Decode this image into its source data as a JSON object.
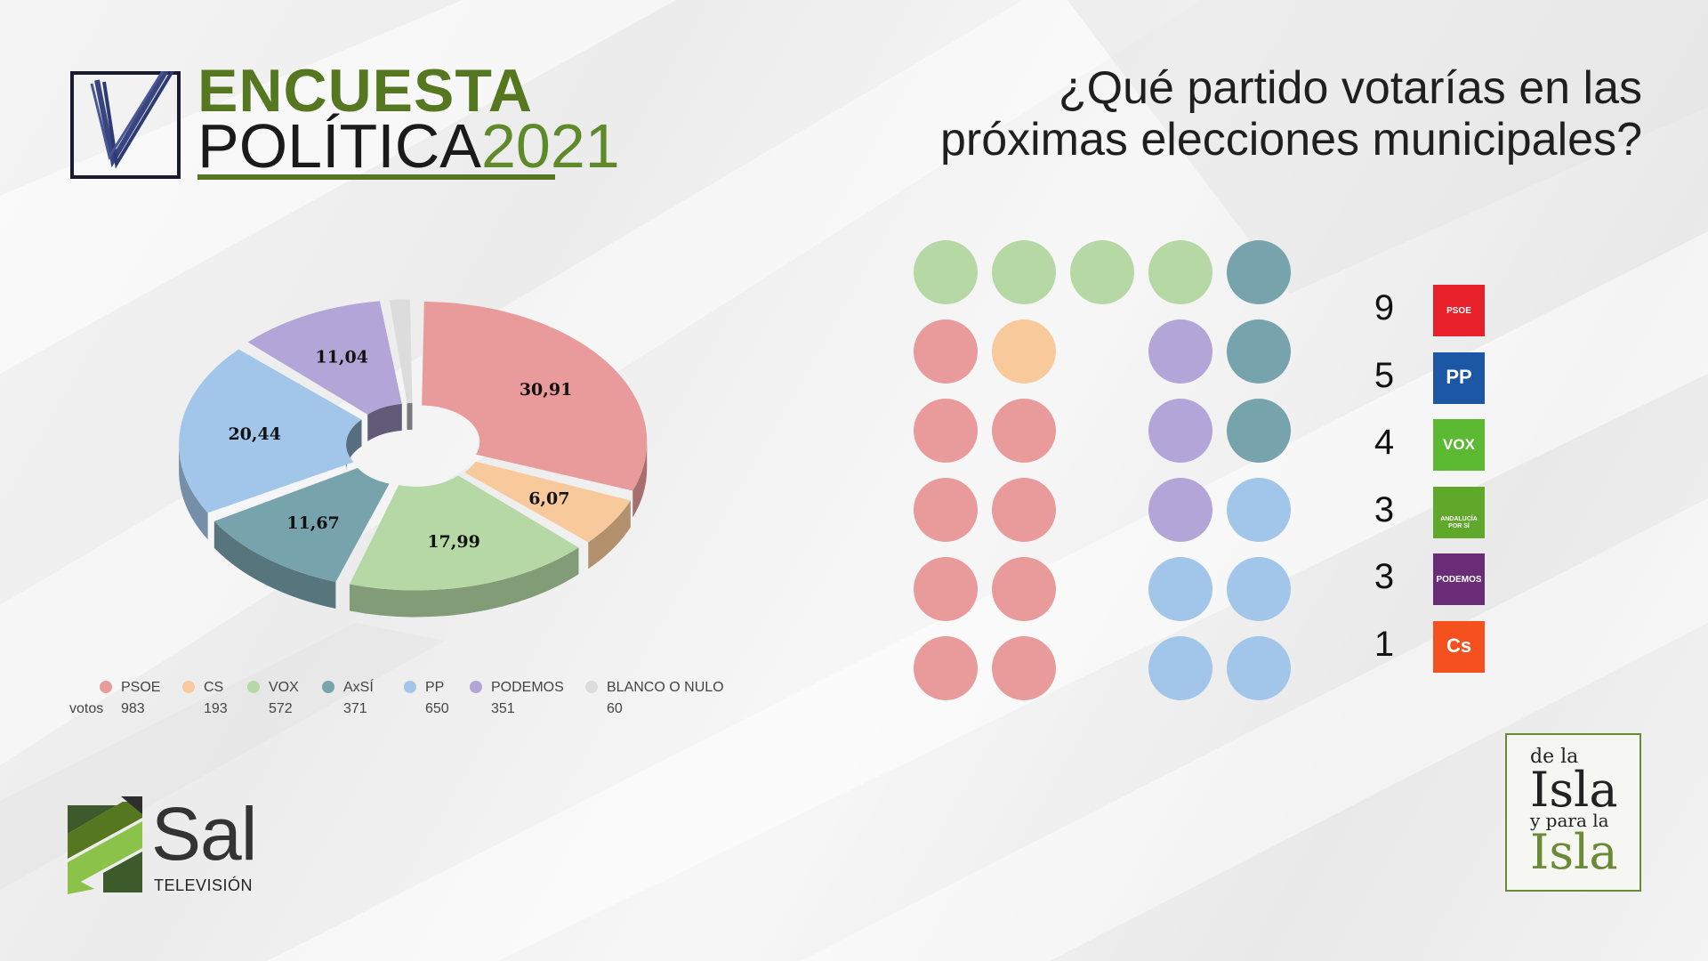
{
  "header": {
    "title_line1": "ENCUESTA",
    "title_line2": "POLÍTICA",
    "title_year": "2021"
  },
  "question": {
    "line1": "¿Qué partido votarías en las",
    "line2": "próximas elecciones municipales?"
  },
  "chart_data": [
    {
      "type": "pie",
      "style": "3d-donut",
      "categories": [
        "PSOE",
        "CS",
        "VOX",
        "AxSÍ",
        "PP",
        "PODEMOS",
        "BLANCO O NULO"
      ],
      "values": [
        30.91,
        6.07,
        17.99,
        11.67,
        20.44,
        11.04,
        1.89
      ],
      "value_labels": [
        "30,91",
        "6,07",
        "17,99",
        "11,67",
        "20,44",
        "11,04",
        ""
      ],
      "votes": [
        "983",
        "193",
        "572",
        "371",
        "650",
        "351",
        "60"
      ],
      "votes_label": "votos",
      "colors": [
        "#e99a9a",
        "#f8c99a",
        "#b5d8a5",
        "#77a3ad",
        "#a2c6ea",
        "#b3a5d8",
        "#dcdcdc"
      ],
      "legend_position": "bottom"
    },
    {
      "type": "table",
      "kind": "seat-distribution",
      "rows": [
        {
          "party": "PSOE",
          "seats": "9",
          "logo_text": "PSOE",
          "color": "#e8202a"
        },
        {
          "party": "PP",
          "seats": "5",
          "logo_text": "PP",
          "color": "#1c57a5"
        },
        {
          "party": "VOX",
          "seats": "4",
          "logo_text": "VOX",
          "color": "#5bb932"
        },
        {
          "party": "AxSÍ",
          "seats": "3",
          "logo_text": "ANDALUCÍA POR SÍ",
          "color": "#5fa829"
        },
        {
          "party": "PODEMOS",
          "seats": "3",
          "logo_text": "PODEMOS",
          "color": "#6a2c76"
        },
        {
          "party": "CS",
          "seats": "1",
          "logo_text": "Cs",
          "color": "#f4511e"
        }
      ]
    }
  ],
  "seat_colors": {
    "VOX": "#b5d8a5",
    "AxSI": "#77a3ad",
    "PSOE": "#e99a9a",
    "CS": "#f8c99a",
    "PODEMOS": "#b3a5d8",
    "PP": "#a2c6ea"
  },
  "seat_grid": [
    [
      "VOX",
      "VOX",
      "VOX",
      "VOX",
      "AxSI"
    ],
    [
      "PSOE",
      "CS",
      "",
      "PODEMOS",
      "AxSI"
    ],
    [
      "PSOE",
      "PSOE",
      "",
      "PODEMOS",
      "AxSI"
    ],
    [
      "PSOE",
      "PSOE",
      "",
      "PODEMOS",
      "PP"
    ],
    [
      "PSOE",
      "PSOE",
      "",
      "PP",
      "PP"
    ],
    [
      "PSOE",
      "PSOE",
      "",
      "PP",
      "PP"
    ]
  ],
  "footer": {
    "sal_text": "Sal",
    "sal_sub": "TELEVISIÓN",
    "isla_l1": "de la",
    "isla_l2": "Isla",
    "isla_l3": "y para la",
    "isla_l4": "Isla"
  }
}
